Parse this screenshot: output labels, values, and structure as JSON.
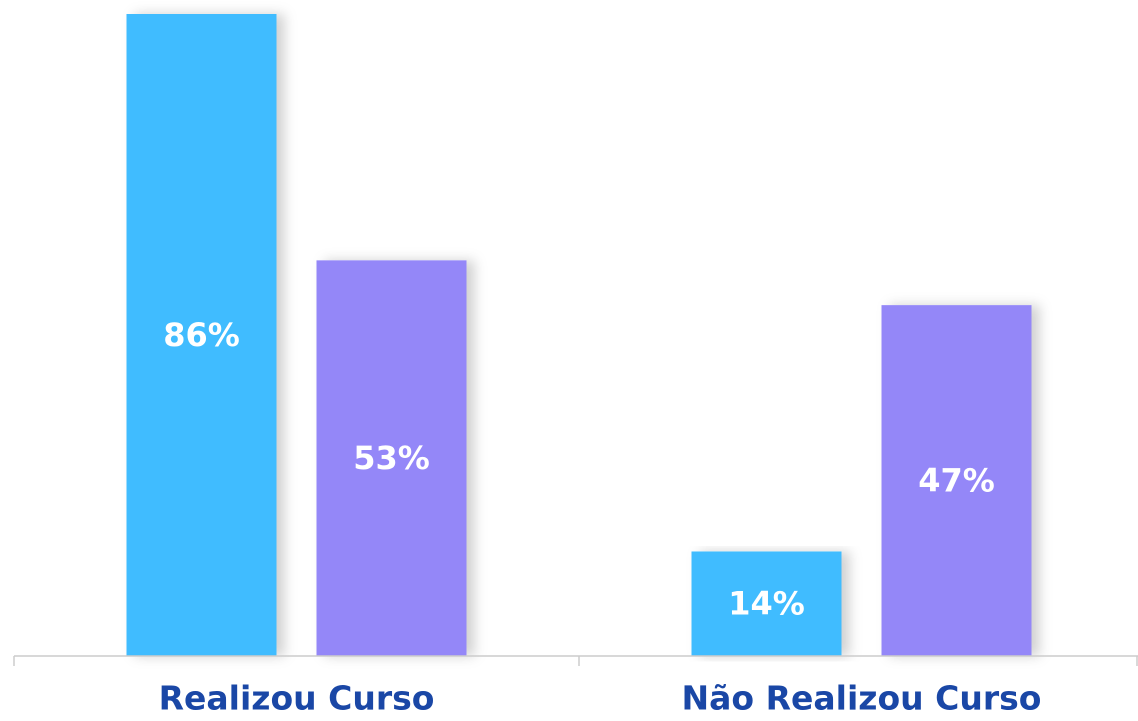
{
  "chart_data": {
    "type": "bar",
    "categories": [
      "Realizou Curso",
      "Não Realizou Curso"
    ],
    "series": [
      {
        "color": "#40bcff",
        "values": [
          86,
          14
        ],
        "value_labels": [
          "86%",
          "14%"
        ]
      },
      {
        "color": "#9487f8",
        "values": [
          53,
          47
        ],
        "value_labels": [
          "53%",
          "47%"
        ]
      }
    ],
    "ylim": [
      0,
      86
    ]
  }
}
